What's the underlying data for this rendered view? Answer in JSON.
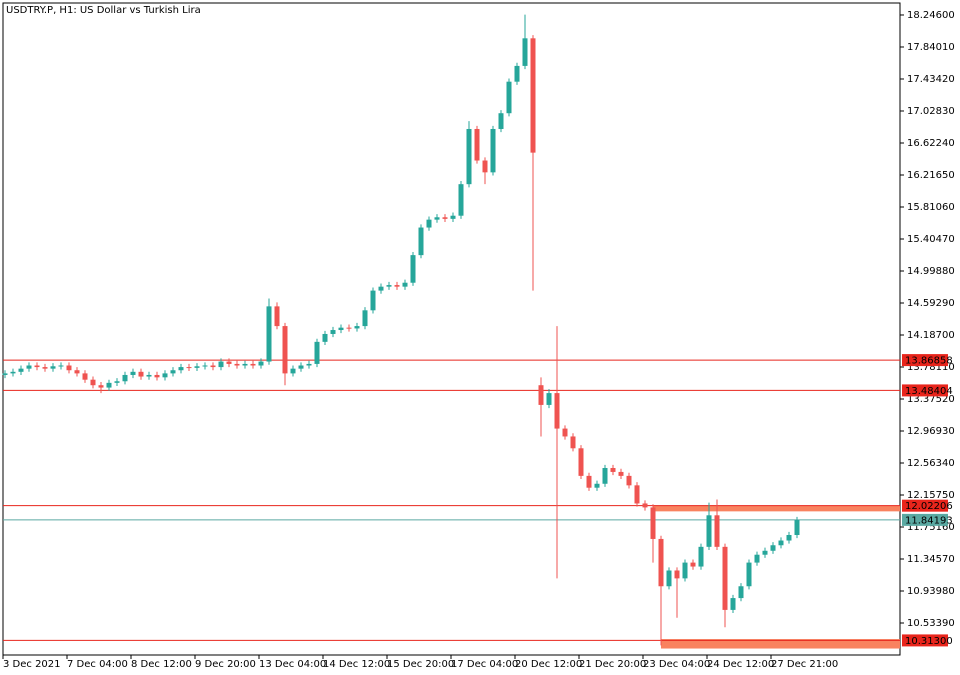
{
  "chart_data": {
    "type": "candlestick",
    "title": "USDTRY.P, H1:  US Dollar vs Turkish Lira",
    "up_color": "#26a69a",
    "down_color": "#ef5350",
    "categories": [
      "3 Dec 2021",
      null,
      null,
      null,
      null,
      null,
      null,
      null,
      "7 Dec 04:00",
      null,
      null,
      null,
      null,
      null,
      null,
      null,
      "8 Dec 12:00",
      null,
      null,
      null,
      null,
      null,
      null,
      null,
      "9 Dec 20:00",
      null,
      null,
      null,
      null,
      null,
      null,
      null,
      "13 Dec 04:00",
      null,
      null,
      null,
      null,
      null,
      null,
      null,
      "14 Dec 12:00",
      null,
      null,
      null,
      null,
      null,
      null,
      null,
      "15 Dec 20:00",
      null,
      null,
      null,
      null,
      null,
      null,
      null,
      "17 Dec 04:00",
      null,
      null,
      null,
      null,
      null,
      null,
      null,
      "20 Dec 12:00",
      null,
      null,
      null,
      null,
      null,
      null,
      null,
      "21 Dec 20:00",
      null,
      null,
      null,
      null,
      null,
      null,
      null,
      "23 Dec 04:00",
      null,
      null,
      null,
      null,
      null,
      null,
      null,
      "24 Dec 12:00",
      null,
      null,
      null,
      null,
      null,
      null,
      null,
      "27 Dec 21:00",
      null,
      null,
      null
    ],
    "open": [
      13.68,
      13.7,
      13.72,
      13.76,
      13.8,
      13.78,
      13.76,
      13.79,
      13.8,
      13.74,
      13.7,
      13.62,
      13.55,
      13.52,
      13.58,
      13.6,
      13.68,
      13.72,
      13.66,
      13.68,
      13.65,
      13.7,
      13.74,
      13.78,
      13.77,
      13.79,
      13.8,
      13.78,
      13.85,
      13.82,
      13.8,
      13.82,
      13.8,
      13.85,
      14.55,
      14.3,
      13.7,
      13.76,
      13.8,
      13.82,
      14.1,
      14.2,
      14.25,
      14.28,
      14.27,
      14.3,
      14.5,
      14.75,
      14.8,
      14.82,
      14.8,
      14.85,
      15.2,
      15.55,
      15.65,
      15.68,
      15.66,
      15.7,
      16.1,
      16.8,
      16.4,
      16.25,
      16.8,
      17.0,
      17.4,
      17.6,
      17.95,
      13.55,
      13.3,
      13.45,
      13.0,
      12.9,
      12.75,
      12.4,
      12.25,
      12.3,
      12.5,
      12.45,
      12.4,
      12.28,
      12.05,
      12.0,
      11.6,
      11.0,
      11.2,
      11.1,
      11.3,
      11.25,
      11.5,
      11.9,
      11.5,
      10.7,
      10.85,
      11.0,
      11.3,
      11.4,
      11.45,
      11.52,
      11.58,
      11.65
    ],
    "high": [
      13.74,
      13.76,
      13.8,
      13.84,
      13.84,
      13.82,
      13.83,
      13.84,
      13.84,
      13.78,
      13.74,
      13.66,
      13.59,
      13.62,
      13.64,
      13.72,
      13.76,
      13.76,
      13.72,
      13.72,
      13.74,
      13.78,
      13.82,
      13.82,
      13.83,
      13.84,
      13.84,
      13.89,
      13.89,
      13.86,
      13.86,
      13.86,
      13.89,
      14.65,
      14.6,
      14.34,
      13.8,
      13.84,
      13.86,
      14.14,
      14.24,
      14.29,
      14.32,
      14.32,
      14.34,
      14.54,
      14.79,
      14.84,
      14.86,
      14.86,
      14.89,
      15.24,
      15.59,
      15.69,
      15.72,
      15.72,
      15.74,
      16.14,
      16.9,
      16.84,
      16.44,
      16.84,
      17.04,
      17.44,
      17.64,
      18.25,
      17.99,
      13.65,
      13.5,
      14.3,
      13.04,
      12.94,
      12.79,
      12.44,
      12.34,
      12.54,
      12.54,
      12.49,
      12.44,
      12.32,
      12.09,
      12.04,
      11.64,
      11.24,
      11.24,
      11.34,
      11.34,
      11.54,
      12.06,
      12.1,
      11.54,
      10.89,
      11.04,
      11.34,
      11.44,
      11.49,
      11.56,
      11.62,
      11.69,
      11.88
    ],
    "low": [
      13.64,
      13.66,
      13.68,
      13.72,
      13.74,
      13.72,
      13.72,
      13.75,
      13.7,
      13.66,
      13.58,
      13.51,
      13.45,
      13.48,
      13.54,
      13.56,
      13.64,
      13.62,
      13.62,
      13.61,
      13.61,
      13.66,
      13.7,
      13.73,
      13.73,
      13.75,
      13.74,
      13.74,
      13.78,
      13.76,
      13.76,
      13.76,
      13.76,
      13.81,
      14.26,
      13.55,
      13.66,
      13.72,
      13.76,
      13.78,
      14.06,
      14.16,
      14.21,
      14.23,
      14.23,
      14.26,
      14.46,
      14.71,
      14.76,
      14.76,
      14.76,
      14.81,
      15.16,
      15.51,
      15.61,
      15.62,
      15.62,
      15.66,
      16.06,
      16.36,
      16.1,
      16.21,
      16.76,
      16.96,
      17.36,
      17.56,
      14.75,
      12.9,
      13.26,
      11.1,
      12.86,
      12.71,
      12.36,
      12.21,
      12.21,
      12.26,
      12.41,
      12.36,
      12.24,
      12.01,
      11.96,
      11.3,
      10.25,
      10.96,
      10.6,
      11.06,
      11.21,
      11.21,
      11.46,
      11.46,
      10.48,
      10.66,
      10.81,
      10.96,
      11.26,
      11.36,
      11.41,
      11.48,
      11.54,
      11.61
    ],
    "close": [
      13.7,
      13.72,
      13.76,
      13.8,
      13.78,
      13.76,
      13.79,
      13.8,
      13.74,
      13.7,
      13.62,
      13.55,
      13.52,
      13.58,
      13.6,
      13.68,
      13.72,
      13.66,
      13.68,
      13.65,
      13.7,
      13.74,
      13.78,
      13.77,
      13.79,
      13.8,
      13.78,
      13.85,
      13.82,
      13.8,
      13.82,
      13.8,
      13.85,
      14.55,
      14.3,
      13.7,
      13.76,
      13.8,
      13.82,
      14.1,
      14.2,
      14.25,
      14.28,
      14.27,
      14.3,
      14.5,
      14.75,
      14.8,
      14.82,
      14.8,
      14.85,
      15.2,
      15.55,
      15.65,
      15.68,
      15.66,
      15.7,
      16.1,
      16.8,
      16.4,
      16.25,
      16.8,
      17.0,
      17.4,
      17.6,
      17.95,
      16.5,
      13.3,
      13.45,
      13.0,
      12.9,
      12.75,
      12.4,
      12.25,
      12.3,
      12.5,
      12.45,
      12.4,
      12.28,
      12.05,
      12.0,
      11.6,
      11.0,
      11.2,
      11.1,
      11.3,
      11.25,
      11.5,
      11.9,
      11.5,
      10.7,
      10.85,
      11.0,
      11.3,
      11.4,
      11.45,
      11.52,
      11.58,
      11.65,
      11.84
    ],
    "ylim": [
      10.128,
      18.398
    ],
    "yticks": [
      {
        "value": 18.246,
        "label": "18.24600"
      },
      {
        "value": 17.8401,
        "label": "17.84010"
      },
      {
        "value": 17.4342,
        "label": "17.43420"
      },
      {
        "value": 17.0283,
        "label": "17.02830"
      },
      {
        "value": 16.6224,
        "label": "16.62240"
      },
      {
        "value": 16.2165,
        "label": "16.21650"
      },
      {
        "value": 15.8106,
        "label": "15.81060"
      },
      {
        "value": 15.4047,
        "label": "15.40470"
      },
      {
        "value": 14.9988,
        "label": "14.99880"
      },
      {
        "value": 14.5929,
        "label": "14.59290"
      },
      {
        "value": 14.187,
        "label": "14.18700"
      },
      {
        "value": 13.7811,
        "label": "13.78110"
      },
      {
        "value": 13.3752,
        "label": "13.37520"
      },
      {
        "value": 12.9693,
        "label": "12.96930"
      },
      {
        "value": 12.5634,
        "label": "12.56340"
      },
      {
        "value": 12.1575,
        "label": "12.15750"
      },
      {
        "value": 11.7516,
        "label": "11.75160"
      },
      {
        "value": 11.3457,
        "label": "11.34570"
      },
      {
        "value": 10.9398,
        "label": "10.93980"
      },
      {
        "value": 10.5339,
        "label": "10.53390"
      }
    ],
    "price_lines": [
      {
        "value": 13.86858,
        "color": "#e8251c"
      },
      {
        "value": 13.48404,
        "color": "#e8251c"
      },
      {
        "value": 12.02206,
        "color": "#e8251c"
      },
      {
        "value": 11.84193,
        "color": "#5aa9a2"
      },
      {
        "value": 10.313,
        "label": "10.31300",
        "color": "#e8251c"
      }
    ],
    "zones": [
      {
        "start": 81,
        "high": 12.02,
        "low": 11.95,
        "color": "#f9825f"
      },
      {
        "start": 82,
        "high": 10.33,
        "low": 10.21,
        "color": "#f9825f"
      }
    ]
  }
}
